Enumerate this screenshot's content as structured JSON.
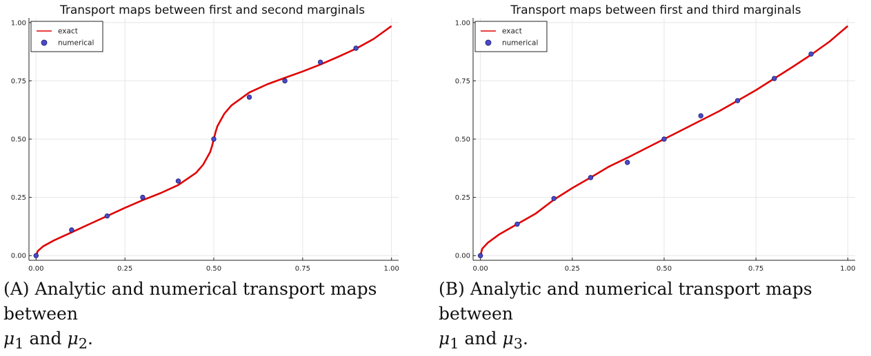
{
  "chart_data": [
    {
      "type": "line",
      "title": "Transport maps between first and second marginals",
      "xlabel": "",
      "ylabel": "",
      "xlim": [
        -0.02,
        1.02
      ],
      "ylim": [
        -0.02,
        1.02
      ],
      "xticks": [
        "0.00",
        "0.25",
        "0.50",
        "0.75",
        "1.00"
      ],
      "yticks": [
        "0.00",
        "0.25",
        "0.50",
        "0.75",
        "1.00"
      ],
      "grid": true,
      "legend_position": "top-left",
      "series": [
        {
          "name": "exact",
          "style": "line",
          "color": "#e00000",
          "x": [
            0.0,
            0.005,
            0.02,
            0.05,
            0.1,
            0.15,
            0.2,
            0.25,
            0.3,
            0.35,
            0.4,
            0.45,
            0.47,
            0.49,
            0.495,
            0.5,
            0.505,
            0.51,
            0.53,
            0.55,
            0.6,
            0.65,
            0.7,
            0.75,
            0.8,
            0.85,
            0.9,
            0.95,
            1.0
          ],
          "y": [
            0.0,
            0.02,
            0.04,
            0.065,
            0.1,
            0.135,
            0.17,
            0.205,
            0.238,
            0.268,
            0.303,
            0.355,
            0.39,
            0.445,
            0.47,
            0.5,
            0.53,
            0.555,
            0.61,
            0.645,
            0.7,
            0.735,
            0.763,
            0.79,
            0.82,
            0.853,
            0.888,
            0.93,
            0.985
          ]
        },
        {
          "name": "numerical",
          "style": "scatter",
          "color": "#4a4ac8",
          "x": [
            0.0,
            0.1,
            0.2,
            0.3,
            0.4,
            0.5,
            0.6,
            0.7,
            0.8,
            0.9
          ],
          "y": [
            0.0,
            0.11,
            0.17,
            0.25,
            0.32,
            0.5,
            0.68,
            0.75,
            0.83,
            0.89
          ]
        }
      ]
    },
    {
      "type": "line",
      "title": "Transport maps between first and third marginals",
      "xlabel": "",
      "ylabel": "",
      "xlim": [
        -0.02,
        1.02
      ],
      "ylim": [
        -0.02,
        1.02
      ],
      "xticks": [
        "0.00",
        "0.25",
        "0.50",
        "0.75",
        "1.00"
      ],
      "yticks": [
        "0.00",
        "0.25",
        "0.50",
        "0.75",
        "1.00"
      ],
      "grid": true,
      "legend_position": "top-left",
      "series": [
        {
          "name": "exact",
          "style": "line",
          "color": "#e00000",
          "x": [
            0.0,
            0.005,
            0.02,
            0.05,
            0.1,
            0.15,
            0.2,
            0.25,
            0.3,
            0.35,
            0.4,
            0.45,
            0.5,
            0.55,
            0.6,
            0.65,
            0.7,
            0.75,
            0.8,
            0.85,
            0.9,
            0.95,
            1.0
          ],
          "y": [
            0.0,
            0.03,
            0.055,
            0.09,
            0.135,
            0.18,
            0.24,
            0.29,
            0.335,
            0.382,
            0.42,
            0.46,
            0.5,
            0.54,
            0.58,
            0.62,
            0.665,
            0.71,
            0.76,
            0.81,
            0.862,
            0.918,
            0.985
          ]
        },
        {
          "name": "numerical",
          "style": "scatter",
          "color": "#4a4ac8",
          "x": [
            0.0,
            0.1,
            0.2,
            0.3,
            0.4,
            0.5,
            0.6,
            0.7,
            0.8,
            0.9
          ],
          "y": [
            0.0,
            0.135,
            0.245,
            0.335,
            0.4,
            0.5,
            0.6,
            0.665,
            0.76,
            0.865
          ]
        }
      ]
    }
  ],
  "captions": [
    {
      "label": "(A)",
      "text": "Analytic and numerical transport maps between",
      "mu_a": "μ",
      "sub_a": "1",
      "and": "and",
      "mu_b": "μ",
      "sub_b": "2",
      "end": "."
    },
    {
      "label": "(B)",
      "text": "Analytic and numerical transport maps between",
      "mu_a": "μ",
      "sub_a": "1",
      "and": "and",
      "mu_b": "μ",
      "sub_b": "3",
      "end": "."
    }
  ]
}
